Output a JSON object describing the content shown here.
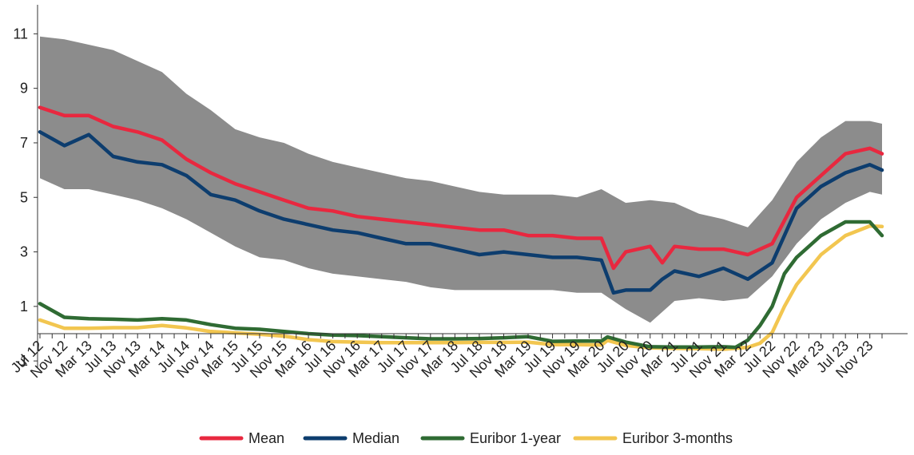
{
  "chart_data": {
    "type": "line",
    "title": "",
    "xlabel": "",
    "ylabel": "",
    "ylim": [
      -1,
      12
    ],
    "yticks": [
      -1,
      1,
      3,
      5,
      7,
      9,
      11
    ],
    "grid": false,
    "legend_position": "bottom-center",
    "xtick_labels": [
      "Jul 12",
      "Nov 12",
      "Mar 13",
      "Jul 13",
      "Nov 13",
      "Mar 14",
      "Jul 14",
      "Nov 14",
      "Mar 15",
      "Jul 15",
      "Nov 15",
      "Mar 16",
      "Jul 16",
      "Nov 16",
      "Mar 17",
      "Jul 17",
      "Nov 17",
      "Mar 18",
      "Jul 18",
      "Nov 18",
      "Mar 19",
      "Jul 19",
      "Nov 19",
      "Mar 20",
      "Jul 20",
      "Nov 20",
      "Mar 21",
      "Jul 21",
      "Nov 21",
      "Mar 22",
      "Jul 22",
      "Nov 22",
      "Mar 23",
      "Jul 23",
      "Nov 23"
    ],
    "x_start": "Jul 12",
    "x_end": "Jan 24",
    "band": {
      "color": "#8c8c8c",
      "upper": [
        [
          "Jul 12",
          10.9
        ],
        [
          "Nov 12",
          10.8
        ],
        [
          "Mar 13",
          10.6
        ],
        [
          "Jul 13",
          10.4
        ],
        [
          "Nov 13",
          10.0
        ],
        [
          "Mar 14",
          9.6
        ],
        [
          "Jul 14",
          8.8
        ],
        [
          "Nov 14",
          8.2
        ],
        [
          "Mar 15",
          7.5
        ],
        [
          "Jul 15",
          7.2
        ],
        [
          "Nov 15",
          7.0
        ],
        [
          "Mar 16",
          6.6
        ],
        [
          "Jul 16",
          6.3
        ],
        [
          "Nov 16",
          6.1
        ],
        [
          "Mar 17",
          5.9
        ],
        [
          "Jul 17",
          5.7
        ],
        [
          "Nov 17",
          5.6
        ],
        [
          "Mar 18",
          5.4
        ],
        [
          "Jul 18",
          5.2
        ],
        [
          "Nov 18",
          5.1
        ],
        [
          "Mar 19",
          5.1
        ],
        [
          "Jul 19",
          5.1
        ],
        [
          "Nov 19",
          5.0
        ],
        [
          "Mar 20",
          5.3
        ],
        [
          "Jul 20",
          4.8
        ],
        [
          "Nov 20",
          4.9
        ],
        [
          "Mar 21",
          4.8
        ],
        [
          "Jul 21",
          4.4
        ],
        [
          "Nov 21",
          4.2
        ],
        [
          "Mar 22",
          3.9
        ],
        [
          "Jul 22",
          4.9
        ],
        [
          "Nov 22",
          6.3
        ],
        [
          "Mar 23",
          7.2
        ],
        [
          "Jul 23",
          7.8
        ],
        [
          "Nov 23",
          7.8
        ],
        [
          "Jan 24",
          7.7
        ]
      ],
      "lower": [
        [
          "Jul 12",
          5.7
        ],
        [
          "Nov 12",
          5.3
        ],
        [
          "Mar 13",
          5.3
        ],
        [
          "Jul 13",
          5.1
        ],
        [
          "Nov 13",
          4.9
        ],
        [
          "Mar 14",
          4.6
        ],
        [
          "Jul 14",
          4.2
        ],
        [
          "Nov 14",
          3.7
        ],
        [
          "Mar 15",
          3.2
        ],
        [
          "Jul 15",
          2.8
        ],
        [
          "Nov 15",
          2.7
        ],
        [
          "Mar 16",
          2.4
        ],
        [
          "Jul 16",
          2.2
        ],
        [
          "Nov 16",
          2.1
        ],
        [
          "Mar 17",
          2.0
        ],
        [
          "Jul 17",
          1.9
        ],
        [
          "Nov 17",
          1.7
        ],
        [
          "Mar 18",
          1.6
        ],
        [
          "Jul 18",
          1.6
        ],
        [
          "Nov 18",
          1.6
        ],
        [
          "Mar 19",
          1.6
        ],
        [
          "Jul 19",
          1.6
        ],
        [
          "Nov 19",
          1.5
        ],
        [
          "Mar 20",
          1.5
        ],
        [
          "Jul 20",
          0.9
        ],
        [
          "Nov 20",
          0.4
        ],
        [
          "Mar 21",
          1.2
        ],
        [
          "Jul 21",
          1.3
        ],
        [
          "Nov 21",
          1.2
        ],
        [
          "Mar 22",
          1.3
        ],
        [
          "Jul 22",
          2.1
        ],
        [
          "Nov 22",
          3.3
        ],
        [
          "Mar 23",
          4.2
        ],
        [
          "Jul 23",
          4.8
        ],
        [
          "Nov 23",
          5.2
        ],
        [
          "Jan 24",
          5.1
        ]
      ]
    },
    "series": [
      {
        "name": "Mean",
        "color": "#e8283f",
        "points": [
          [
            "Jul 12",
            8.3
          ],
          [
            "Nov 12",
            8.0
          ],
          [
            "Mar 13",
            8.0
          ],
          [
            "Jul 13",
            7.6
          ],
          [
            "Nov 13",
            7.4
          ],
          [
            "Mar 14",
            7.1
          ],
          [
            "Jul 14",
            6.4
          ],
          [
            "Nov 14",
            5.9
          ],
          [
            "Mar 15",
            5.5
          ],
          [
            "Jul 15",
            5.2
          ],
          [
            "Nov 15",
            4.9
          ],
          [
            "Mar 16",
            4.6
          ],
          [
            "Jul 16",
            4.5
          ],
          [
            "Nov 16",
            4.3
          ],
          [
            "Mar 17",
            4.2
          ],
          [
            "Jul 17",
            4.1
          ],
          [
            "Nov 17",
            4.0
          ],
          [
            "Mar 18",
            3.9
          ],
          [
            "Jul 18",
            3.8
          ],
          [
            "Nov 18",
            3.8
          ],
          [
            "Mar 19",
            3.6
          ],
          [
            "Jul 19",
            3.6
          ],
          [
            "Nov 19",
            3.5
          ],
          [
            "Mar 20",
            3.5
          ],
          [
            "May 20",
            2.4
          ],
          [
            "Jul 20",
            3.0
          ],
          [
            "Nov 20",
            3.2
          ],
          [
            "Jan 21",
            2.6
          ],
          [
            "Mar 21",
            3.2
          ],
          [
            "Jul 21",
            3.1
          ],
          [
            "Nov 21",
            3.1
          ],
          [
            "Mar 22",
            2.9
          ],
          [
            "Jul 22",
            3.3
          ],
          [
            "Nov 22",
            5.0
          ],
          [
            "Mar 23",
            5.8
          ],
          [
            "Jul 23",
            6.6
          ],
          [
            "Nov 23",
            6.8
          ],
          [
            "Jan 24",
            6.6
          ]
        ]
      },
      {
        "name": "Median",
        "color": "#0d3d6e",
        "points": [
          [
            "Jul 12",
            7.4
          ],
          [
            "Nov 12",
            6.9
          ],
          [
            "Mar 13",
            7.3
          ],
          [
            "Jul 13",
            6.5
          ],
          [
            "Nov 13",
            6.3
          ],
          [
            "Mar 14",
            6.2
          ],
          [
            "Jul 14",
            5.8
          ],
          [
            "Nov 14",
            5.1
          ],
          [
            "Mar 15",
            4.9
          ],
          [
            "Jul 15",
            4.5
          ],
          [
            "Nov 15",
            4.2
          ],
          [
            "Mar 16",
            4.0
          ],
          [
            "Jul 16",
            3.8
          ],
          [
            "Nov 16",
            3.7
          ],
          [
            "Mar 17",
            3.5
          ],
          [
            "Jul 17",
            3.3
          ],
          [
            "Nov 17",
            3.3
          ],
          [
            "Mar 18",
            3.1
          ],
          [
            "Jul 18",
            2.9
          ],
          [
            "Nov 18",
            3.0
          ],
          [
            "Mar 19",
            2.9
          ],
          [
            "Jul 19",
            2.8
          ],
          [
            "Nov 19",
            2.8
          ],
          [
            "Mar 20",
            2.7
          ],
          [
            "May 20",
            1.5
          ],
          [
            "Jul 20",
            1.6
          ],
          [
            "Nov 20",
            1.6
          ],
          [
            "Jan 21",
            2.0
          ],
          [
            "Mar 21",
            2.3
          ],
          [
            "Jul 21",
            2.1
          ],
          [
            "Nov 21",
            2.4
          ],
          [
            "Mar 22",
            2.0
          ],
          [
            "Jul 22",
            2.6
          ],
          [
            "Nov 22",
            4.6
          ],
          [
            "Mar 23",
            5.4
          ],
          [
            "Jul 23",
            5.9
          ],
          [
            "Nov 23",
            6.2
          ],
          [
            "Jan 24",
            6.0
          ]
        ]
      },
      {
        "name": "Euribor 1-year",
        "color": "#2f6b33",
        "points": [
          [
            "Jul 12",
            1.1
          ],
          [
            "Nov 12",
            0.6
          ],
          [
            "Mar 13",
            0.55
          ],
          [
            "Jul 13",
            0.53
          ],
          [
            "Nov 13",
            0.5
          ],
          [
            "Mar 14",
            0.55
          ],
          [
            "Jul 14",
            0.5
          ],
          [
            "Nov 14",
            0.33
          ],
          [
            "Mar 15",
            0.2
          ],
          [
            "Jul 15",
            0.16
          ],
          [
            "Nov 15",
            0.08
          ],
          [
            "Mar 16",
            0.0
          ],
          [
            "Jul 16",
            -0.05
          ],
          [
            "Nov 16",
            -0.07
          ],
          [
            "Mar 17",
            -0.11
          ],
          [
            "Jul 17",
            -0.15
          ],
          [
            "Nov 17",
            -0.19
          ],
          [
            "Mar 18",
            -0.19
          ],
          [
            "Jul 18",
            -0.18
          ],
          [
            "Nov 18",
            -0.15
          ],
          [
            "Mar 19",
            -0.11
          ],
          [
            "Jul 19",
            -0.28
          ],
          [
            "Nov 19",
            -0.27
          ],
          [
            "Mar 20",
            -0.27
          ],
          [
            "Apr 20",
            -0.12
          ],
          [
            "Jul 20",
            -0.31
          ],
          [
            "Nov 20",
            -0.48
          ],
          [
            "Mar 21",
            -0.49
          ],
          [
            "Jul 21",
            -0.49
          ],
          [
            "Nov 21",
            -0.48
          ],
          [
            "Jan 22",
            -0.5
          ],
          [
            "Mar 22",
            -0.24
          ],
          [
            "May 22",
            0.3
          ],
          [
            "Jul 22",
            1.0
          ],
          [
            "Sep 22",
            2.2
          ],
          [
            "Nov 22",
            2.8
          ],
          [
            "Mar 23",
            3.6
          ],
          [
            "Jul 23",
            4.1
          ],
          [
            "Nov 23",
            4.1
          ],
          [
            "Jan 24",
            3.6
          ]
        ]
      },
      {
        "name": "Euribor 3-months",
        "color": "#f2c650",
        "points": [
          [
            "Jul 12",
            0.5
          ],
          [
            "Nov 12",
            0.2
          ],
          [
            "Mar 13",
            0.2
          ],
          [
            "Jul 13",
            0.22
          ],
          [
            "Nov 13",
            0.22
          ],
          [
            "Mar 14",
            0.3
          ],
          [
            "Jul 14",
            0.21
          ],
          [
            "Nov 14",
            0.08
          ],
          [
            "Mar 15",
            0.03
          ],
          [
            "Jul 15",
            -0.02
          ],
          [
            "Nov 15",
            -0.09
          ],
          [
            "Mar 16",
            -0.22
          ],
          [
            "Jul 16",
            -0.29
          ],
          [
            "Nov 16",
            -0.31
          ],
          [
            "Mar 17",
            -0.33
          ],
          [
            "Jul 17",
            -0.33
          ],
          [
            "Nov 17",
            -0.33
          ],
          [
            "Mar 18",
            -0.33
          ],
          [
            "Jul 18",
            -0.32
          ],
          [
            "Nov 18",
            -0.32
          ],
          [
            "Mar 19",
            -0.31
          ],
          [
            "Jul 19",
            -0.4
          ],
          [
            "Nov 19",
            -0.4
          ],
          [
            "Mar 20",
            -0.42
          ],
          [
            "Apr 20",
            -0.25
          ],
          [
            "Jul 20",
            -0.43
          ],
          [
            "Nov 20",
            -0.52
          ],
          [
            "Mar 21",
            -0.54
          ],
          [
            "Jul 21",
            -0.55
          ],
          [
            "Nov 21",
            -0.57
          ],
          [
            "Mar 22",
            -0.5
          ],
          [
            "May 22",
            -0.35
          ],
          [
            "Jul 22",
            0.04
          ],
          [
            "Sep 22",
            1.0
          ],
          [
            "Nov 22",
            1.8
          ],
          [
            "Mar 23",
            2.9
          ],
          [
            "Jul 23",
            3.6
          ],
          [
            "Nov 23",
            3.95
          ],
          [
            "Jan 24",
            3.93
          ]
        ]
      }
    ]
  }
}
